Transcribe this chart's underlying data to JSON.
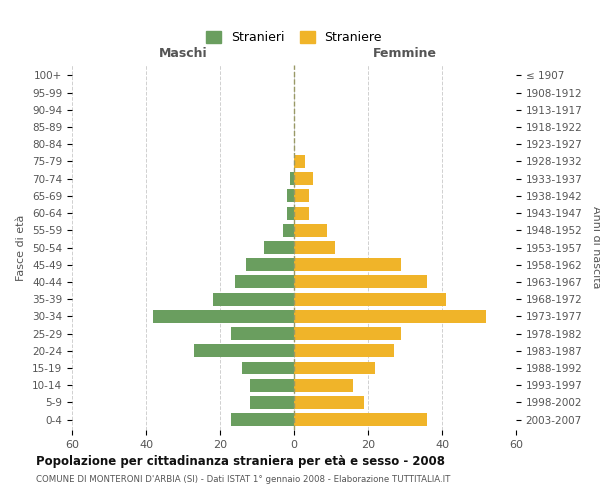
{
  "age_groups": [
    "100+",
    "95-99",
    "90-94",
    "85-89",
    "80-84",
    "75-79",
    "70-74",
    "65-69",
    "60-64",
    "55-59",
    "50-54",
    "45-49",
    "40-44",
    "35-39",
    "30-34",
    "25-29",
    "20-24",
    "15-19",
    "10-14",
    "5-9",
    "0-4"
  ],
  "birth_years": [
    "≤ 1907",
    "1908-1912",
    "1913-1917",
    "1918-1922",
    "1923-1927",
    "1928-1932",
    "1933-1937",
    "1938-1942",
    "1943-1947",
    "1948-1952",
    "1953-1957",
    "1958-1962",
    "1963-1967",
    "1968-1972",
    "1973-1977",
    "1978-1982",
    "1983-1987",
    "1988-1992",
    "1993-1997",
    "1998-2002",
    "2003-2007"
  ],
  "males": [
    0,
    0,
    0,
    0,
    0,
    0,
    1,
    2,
    2,
    3,
    8,
    13,
    16,
    22,
    38,
    17,
    27,
    14,
    12,
    12,
    17
  ],
  "females": [
    0,
    0,
    0,
    0,
    0,
    3,
    5,
    4,
    4,
    9,
    11,
    29,
    36,
    41,
    52,
    29,
    27,
    22,
    16,
    19,
    36
  ],
  "male_color": "#6a9e5f",
  "female_color": "#f0b429",
  "title": "Popolazione per cittadinanza straniera per età e sesso - 2008",
  "subtitle": "COMUNE DI MONTERONI D'ARBIA (SI) - Dati ISTAT 1° gennaio 2008 - Elaborazione TUTTITALIA.IT",
  "ylabel_left": "Fasce di età",
  "ylabel_right": "Anni di nascita",
  "header_left": "Maschi",
  "header_right": "Femmine",
  "legend_male": "Stranieri",
  "legend_female": "Straniere",
  "xlim": 60,
  "background_color": "#ffffff",
  "grid_color": "#d0d0d0",
  "bar_height": 0.75
}
